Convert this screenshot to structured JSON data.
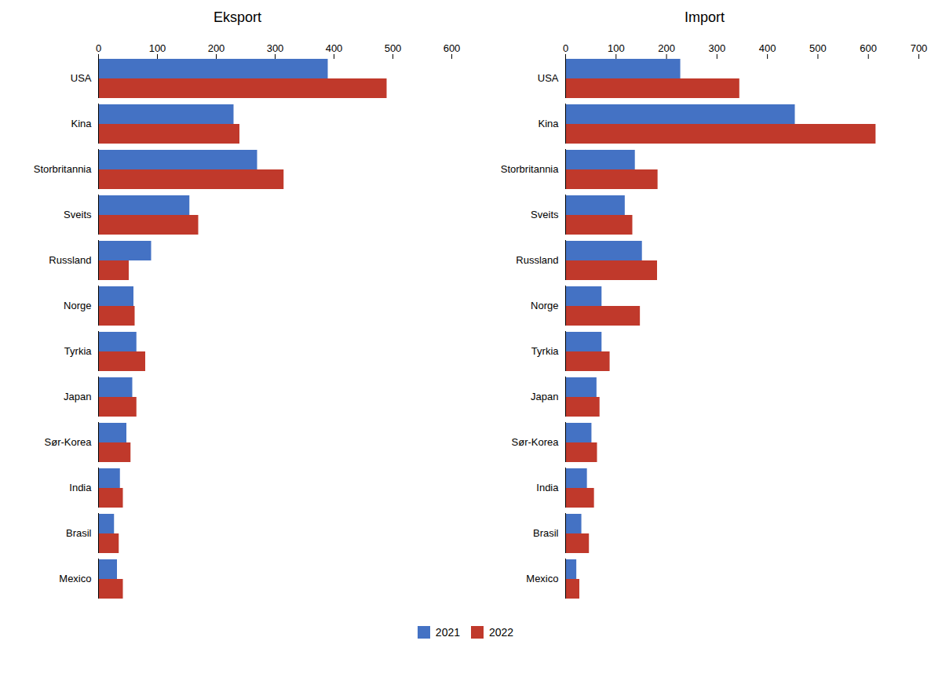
{
  "chart_data": [
    {
      "type": "bar",
      "orientation": "horizontal",
      "title": "Eksport",
      "categories": [
        "USA",
        "Kina",
        "Storbritannia",
        "Sveits",
        "Russland",
        "Norge",
        "Tyrkia",
        "Japan",
        "Sør-Korea",
        "India",
        "Brasil",
        "Mexico"
      ],
      "series": [
        {
          "name": "2021",
          "color": "#4472C4",
          "values": [
            390,
            230,
            270,
            155,
            90,
            60,
            65,
            58,
            48,
            37,
            27,
            32
          ]
        },
        {
          "name": "2022",
          "color": "#C0392B",
          "values": [
            490,
            240,
            315,
            170,
            52,
            62,
            80,
            65,
            55,
            42,
            35,
            42
          ]
        }
      ],
      "xlim": [
        0,
        600
      ],
      "xticks": [
        0,
        100,
        200,
        300,
        400,
        500,
        600
      ],
      "grid": false,
      "legend": "bottom"
    },
    {
      "type": "bar",
      "orientation": "horizontal",
      "title": "Import",
      "categories": [
        "USA",
        "Kina",
        "Storbritannia",
        "Sveits",
        "Russland",
        "Norge",
        "Tyrkia",
        "Japan",
        "Sør-Korea",
        "India",
        "Brasil",
        "Mexico"
      ],
      "series": [
        {
          "name": "2021",
          "color": "#4472C4",
          "values": [
            228,
            455,
            138,
            118,
            152,
            72,
            72,
            62,
            52,
            43,
            32,
            22
          ]
        },
        {
          "name": "2022",
          "color": "#C0392B",
          "values": [
            345,
            615,
            183,
            133,
            182,
            148,
            88,
            68,
            63,
            57,
            47,
            28
          ]
        }
      ],
      "xlim": [
        0,
        700
      ],
      "xticks": [
        0,
        100,
        200,
        300,
        400,
        500,
        600,
        700
      ],
      "grid": false,
      "legend": "bottom"
    }
  ]
}
